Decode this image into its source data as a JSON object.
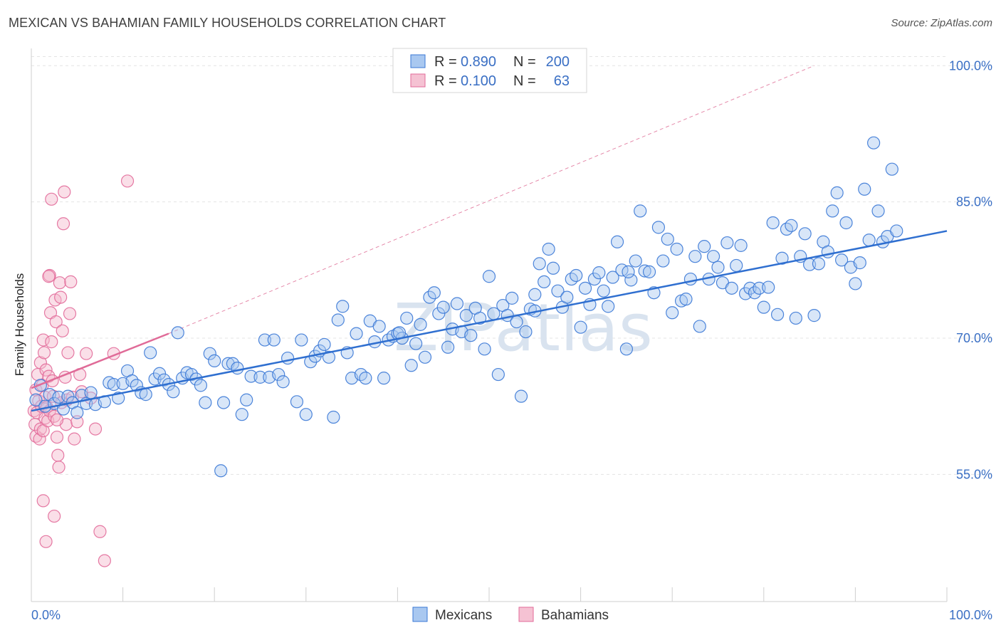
{
  "title": "MEXICAN VS BAHAMIAN FAMILY HOUSEHOLDS CORRELATION CHART",
  "source": "Source: ZipAtlas.com",
  "watermark": "ZIPatlas",
  "colors": {
    "blue": "#3a78d6",
    "blue_fill": "#a9c8f0",
    "pink": "#e26b9a",
    "pink_fill": "#f5b8cd",
    "tick_text": "#3a6fc4"
  },
  "chart_data": {
    "type": "scatter",
    "title": "MEXICAN VS BAHAMIAN FAMILY HOUSEHOLDS CORRELATION CHART",
    "xlabel": "",
    "ylabel": "Family Households",
    "xlim": [
      0,
      100
    ],
    "ylim": [
      41,
      101
    ],
    "x_tick_labels": [
      "0.0%",
      "100.0%"
    ],
    "y_ticks": [
      55,
      70,
      85,
      100
    ],
    "y_tick_labels": [
      "55.0%",
      "70.0%",
      "85.0%",
      "100.0%"
    ],
    "grid": true,
    "legend": [
      {
        "name": "Mexicans",
        "r_label": "R =",
        "r": "0.890",
        "n_label": "N =",
        "n": "200"
      },
      {
        "name": "Bahamians",
        "r_label": "R =",
        "r": "0.100",
        "n_label": "N =",
        "n": "63"
      }
    ],
    "legend_placement": "top-center",
    "series": [
      {
        "name": "Mexicans",
        "trend": [
          [
            0,
            62.0
          ],
          [
            100,
            81.8
          ]
        ],
        "points": [
          [
            0.5,
            63.2
          ],
          [
            1,
            64.8
          ],
          [
            1.5,
            62.5
          ],
          [
            2,
            63.8
          ],
          [
            2.5,
            62.8
          ],
          [
            3,
            63.5
          ],
          [
            3.5,
            62.2
          ],
          [
            4,
            63.6
          ],
          [
            4.5,
            62.9
          ],
          [
            5,
            61.8
          ],
          [
            5.5,
            63.7
          ],
          [
            6,
            62.8
          ],
          [
            6.5,
            64.0
          ],
          [
            7,
            62.7
          ],
          [
            8,
            63.0
          ],
          [
            8.5,
            65.1
          ],
          [
            9,
            64.9
          ],
          [
            9.5,
            63.4
          ],
          [
            10,
            65.0
          ],
          [
            10.5,
            66.4
          ],
          [
            11,
            65.3
          ],
          [
            11.5,
            64.8
          ],
          [
            12,
            64.0
          ],
          [
            12.5,
            63.8
          ],
          [
            13,
            68.4
          ],
          [
            13.5,
            65.5
          ],
          [
            14,
            66.1
          ],
          [
            14.5,
            65.4
          ],
          [
            15,
            64.9
          ],
          [
            15.5,
            64.1
          ],
          [
            16,
            70.6
          ],
          [
            16.5,
            65.6
          ],
          [
            17,
            66.2
          ],
          [
            17.5,
            66.0
          ],
          [
            18,
            65.5
          ],
          [
            18.5,
            64.8
          ],
          [
            19,
            62.9
          ],
          [
            19.5,
            68.3
          ],
          [
            20,
            67.5
          ],
          [
            21,
            62.9
          ],
          [
            21.5,
            67.2
          ],
          [
            22,
            67.2
          ],
          [
            22.5,
            66.7
          ],
          [
            23,
            61.6
          ],
          [
            23.5,
            63.2
          ],
          [
            24,
            65.8
          ],
          [
            25,
            65.7
          ],
          [
            25.5,
            69.8
          ],
          [
            26,
            65.7
          ],
          [
            26.5,
            69.8
          ],
          [
            27,
            66.0
          ],
          [
            27.5,
            65.2
          ],
          [
            28,
            67.8
          ],
          [
            29,
            63.0
          ],
          [
            29.5,
            69.8
          ],
          [
            30,
            61.6
          ],
          [
            30.5,
            67.4
          ],
          [
            31,
            68.0
          ],
          [
            31.5,
            68.6
          ],
          [
            32,
            69.3
          ],
          [
            32.5,
            67.9
          ],
          [
            33,
            61.3
          ],
          [
            33.5,
            72.0
          ],
          [
            34,
            73.5
          ],
          [
            34.5,
            68.4
          ],
          [
            35,
            65.6
          ],
          [
            35.5,
            70.5
          ],
          [
            36,
            66.0
          ],
          [
            36.5,
            65.6
          ],
          [
            37,
            71.9
          ],
          [
            37.5,
            69.6
          ],
          [
            38,
            71.3
          ],
          [
            38.5,
            65.6
          ],
          [
            39,
            69.8
          ],
          [
            39.5,
            70.2
          ],
          [
            40,
            70.5
          ],
          [
            40.5,
            70.0
          ],
          [
            41,
            72.2
          ],
          [
            41.5,
            67.0
          ],
          [
            42,
            69.4
          ],
          [
            42.5,
            71.5
          ],
          [
            43,
            67.9
          ],
          [
            43.5,
            74.5
          ],
          [
            44,
            75.0
          ],
          [
            44.5,
            72.7
          ],
          [
            45,
            73.4
          ],
          [
            45.5,
            69.0
          ],
          [
            46,
            71.0
          ],
          [
            46.5,
            73.8
          ],
          [
            47,
            70.7
          ],
          [
            47.5,
            72.5
          ],
          [
            48,
            70.3
          ],
          [
            48.5,
            73.3
          ],
          [
            49,
            72.2
          ],
          [
            49.5,
            68.8
          ],
          [
            50,
            76.8
          ],
          [
            50.5,
            72.7
          ],
          [
            51,
            66.0
          ],
          [
            51.5,
            73.6
          ],
          [
            52,
            72.5
          ],
          [
            52.5,
            74.4
          ],
          [
            53,
            71.8
          ],
          [
            53.5,
            63.6
          ],
          [
            54,
            70.7
          ],
          [
            54.5,
            73.2
          ],
          [
            55,
            73.0
          ],
          [
            55.5,
            78.2
          ],
          [
            56,
            76.2
          ],
          [
            56.5,
            79.8
          ],
          [
            57,
            77.7
          ],
          [
            57.5,
            75.2
          ],
          [
            58,
            73.4
          ],
          [
            58.5,
            74.5
          ],
          [
            59,
            76.5
          ],
          [
            59.5,
            76.9
          ],
          [
            60,
            71.2
          ],
          [
            60.5,
            75.5
          ],
          [
            61,
            73.7
          ],
          [
            61.5,
            76.5
          ],
          [
            62,
            77.2
          ],
          [
            62.5,
            75.2
          ],
          [
            63,
            73.5
          ],
          [
            63.5,
            76.7
          ],
          [
            64,
            80.6
          ],
          [
            64.5,
            77.5
          ],
          [
            65,
            68.8
          ],
          [
            65.5,
            76.4
          ],
          [
            66,
            78.5
          ],
          [
            66.5,
            84.0
          ],
          [
            67,
            77.4
          ],
          [
            67.5,
            77.3
          ],
          [
            68,
            75.0
          ],
          [
            68.5,
            82.2
          ],
          [
            69,
            78.5
          ],
          [
            69.5,
            80.9
          ],
          [
            70,
            72.8
          ],
          [
            70.5,
            79.8
          ],
          [
            71,
            74.1
          ],
          [
            71.5,
            74.3
          ],
          [
            72,
            76.5
          ],
          [
            72.5,
            79.0
          ],
          [
            73,
            71.3
          ],
          [
            73.5,
            80.1
          ],
          [
            74,
            76.5
          ],
          [
            74.5,
            79.0
          ],
          [
            75,
            77.8
          ],
          [
            75.5,
            76.1
          ],
          [
            76,
            80.5
          ],
          [
            76.5,
            75.5
          ],
          [
            77,
            78.0
          ],
          [
            77.5,
            80.2
          ],
          [
            78,
            74.9
          ],
          [
            78.5,
            75.5
          ],
          [
            79,
            75.0
          ],
          [
            79.5,
            75.5
          ],
          [
            80,
            73.4
          ],
          [
            80.5,
            75.6
          ],
          [
            81,
            82.7
          ],
          [
            81.5,
            72.6
          ],
          [
            82,
            78.8
          ],
          [
            82.5,
            82.0
          ],
          [
            83,
            82.4
          ],
          [
            83.5,
            72.2
          ],
          [
            84,
            79.0
          ],
          [
            84.5,
            81.5
          ],
          [
            85,
            78.1
          ],
          [
            85.5,
            72.5
          ],
          [
            86,
            78.2
          ],
          [
            86.5,
            80.6
          ],
          [
            87,
            79.5
          ],
          [
            87.5,
            84.0
          ],
          [
            88,
            86.0
          ],
          [
            88.5,
            78.6
          ],
          [
            89,
            82.7
          ],
          [
            89.5,
            77.8
          ],
          [
            90,
            76.0
          ],
          [
            90.5,
            78.3
          ],
          [
            91,
            86.4
          ],
          [
            91.5,
            80.8
          ],
          [
            92,
            91.5
          ],
          [
            92.5,
            84.0
          ],
          [
            93,
            80.6
          ],
          [
            93.5,
            81.2
          ],
          [
            94,
            88.6
          ],
          [
            94.5,
            81.8
          ],
          [
            20.7,
            55.4
          ],
          [
            65.2,
            77.3
          ],
          [
            40.2,
            70.6
          ],
          [
            55.0,
            74.8
          ]
        ]
      },
      {
        "name": "Bahamians",
        "trend": [
          [
            0,
            64.5
          ],
          [
            15,
            70.5
          ]
        ],
        "points": [
          [
            0.3,
            62.0
          ],
          [
            0.4,
            60.5
          ],
          [
            0.5,
            59.2
          ],
          [
            0.5,
            64.3
          ],
          [
            0.6,
            61.8
          ],
          [
            0.7,
            66.0
          ],
          [
            0.8,
            63.1
          ],
          [
            0.9,
            58.9
          ],
          [
            1.0,
            67.3
          ],
          [
            1.0,
            60.0
          ],
          [
            1.1,
            62.5
          ],
          [
            1.2,
            64.8
          ],
          [
            1.3,
            69.8
          ],
          [
            1.3,
            59.8
          ],
          [
            1.4,
            68.4
          ],
          [
            1.5,
            63.5
          ],
          [
            1.5,
            61.2
          ],
          [
            1.6,
            66.5
          ],
          [
            1.7,
            62.4
          ],
          [
            1.8,
            60.9
          ],
          [
            1.9,
            65.8
          ],
          [
            2.0,
            76.9
          ],
          [
            2.0,
            62.0
          ],
          [
            2.1,
            72.8
          ],
          [
            2.2,
            69.6
          ],
          [
            2.3,
            65.3
          ],
          [
            2.4,
            63.6
          ],
          [
            2.5,
            61.4
          ],
          [
            2.6,
            74.2
          ],
          [
            2.7,
            71.8
          ],
          [
            2.8,
            59.1
          ],
          [
            2.9,
            57.1
          ],
          [
            3.0,
            55.8
          ],
          [
            3.1,
            76.1
          ],
          [
            3.2,
            74.5
          ],
          [
            3.3,
            62.9
          ],
          [
            3.4,
            70.8
          ],
          [
            3.5,
            82.6
          ],
          [
            3.6,
            86.1
          ],
          [
            3.7,
            65.7
          ],
          [
            3.8,
            60.5
          ],
          [
            3.9,
            63.2
          ],
          [
            4.0,
            68.4
          ],
          [
            4.2,
            72.7
          ],
          [
            4.3,
            76.2
          ],
          [
            4.5,
            63.5
          ],
          [
            4.7,
            58.9
          ],
          [
            5.0,
            60.8
          ],
          [
            5.3,
            66.0
          ],
          [
            5.5,
            64.1
          ],
          [
            6.0,
            68.3
          ],
          [
            6.5,
            63.4
          ],
          [
            7.0,
            60.0
          ],
          [
            7.5,
            48.7
          ],
          [
            8.0,
            45.5
          ],
          [
            9.0,
            68.3
          ],
          [
            10.5,
            87.3
          ],
          [
            2.2,
            85.3
          ],
          [
            1.3,
            52.1
          ],
          [
            1.6,
            47.6
          ],
          [
            2.5,
            50.4
          ],
          [
            2.8,
            61.0
          ],
          [
            1.9,
            76.8
          ]
        ]
      }
    ]
  }
}
